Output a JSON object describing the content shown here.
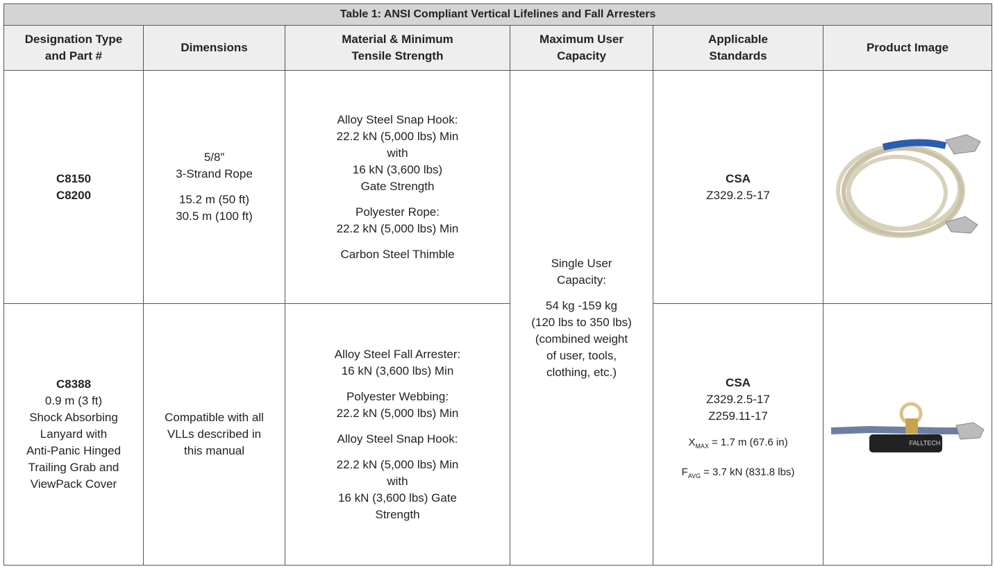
{
  "table": {
    "title": "Table 1: ANSI Compliant Vertical Lifelines and Fall Arresters",
    "headers": [
      [
        "Designation Type",
        "and Part #"
      ],
      [
        "Dimensions"
      ],
      [
        "Material & Minimum",
        "Tensile Strength"
      ],
      [
        "Maximum User",
        "Capacity"
      ],
      [
        "Applicable",
        "Standards"
      ],
      [
        "Product Image"
      ]
    ],
    "capacity": [
      [
        "Single User",
        "Capacity:"
      ],
      [
        "54 kg -159 kg",
        "(120 lbs to 350 lbs)",
        "(combined weight",
        "of user, tools,",
        "clothing, etc.)"
      ]
    ],
    "rows": [
      {
        "designation": {
          "bold": [
            "C8150",
            "C8200"
          ],
          "lines": []
        },
        "dimensions": [
          [
            "5/8”",
            "3-Strand Rope"
          ],
          [
            "15.2 m (50 ft)",
            "30.5 m (100 ft)"
          ]
        ],
        "material": [
          [
            "Alloy Steel Snap Hook:",
            "22.2 kN (5,000 lbs) Min",
            "with",
            "16 kN (3,600 lbs)",
            "Gate Strength"
          ],
          [
            "Polyester Rope:",
            "22.2 kN (5,000 lbs) Min"
          ],
          [
            "Carbon Steel Thimble"
          ]
        ],
        "standards": {
          "bold": "CSA",
          "lines": [
            "Z329.2.5-17"
          ],
          "formulas": []
        }
      },
      {
        "designation": {
          "bold": [
            "C8388"
          ],
          "lines": [
            "0.9 m (3 ft)",
            "Shock Absorbing",
            "Lanyard with",
            "Anti-Panic Hinged",
            "Trailing Grab and",
            "ViewPack Cover"
          ]
        },
        "dimensions": [
          [
            "Compatible with all",
            "VLLs described in",
            "this manual"
          ]
        ],
        "material": [
          [
            "Alloy Steel Fall Arrester:",
            "16 kN (3,600 lbs) Min"
          ],
          [
            "Polyester Webbing:",
            "22.2 kN (5,000 lbs) Min"
          ],
          [
            "Alloy Steel Snap Hook:"
          ],
          [
            "22.2 kN (5,000 lbs) Min",
            "with",
            "16 kN (3,600 lbs) Gate",
            "Strength"
          ]
        ],
        "standards": {
          "bold": "CSA",
          "lines": [
            "Z329.2.5-17",
            "Z259.11-17"
          ],
          "formulas": [
            {
              "symbol": "X",
              "sub": "MAX",
              "text": "= 1.7 m (67.6 in)"
            },
            {
              "symbol": "F",
              "sub": "AVG",
              "text": "= 3.7 kN (831.8 lbs)"
            }
          ]
        },
        "image_label": "FALLTECH"
      }
    ]
  }
}
